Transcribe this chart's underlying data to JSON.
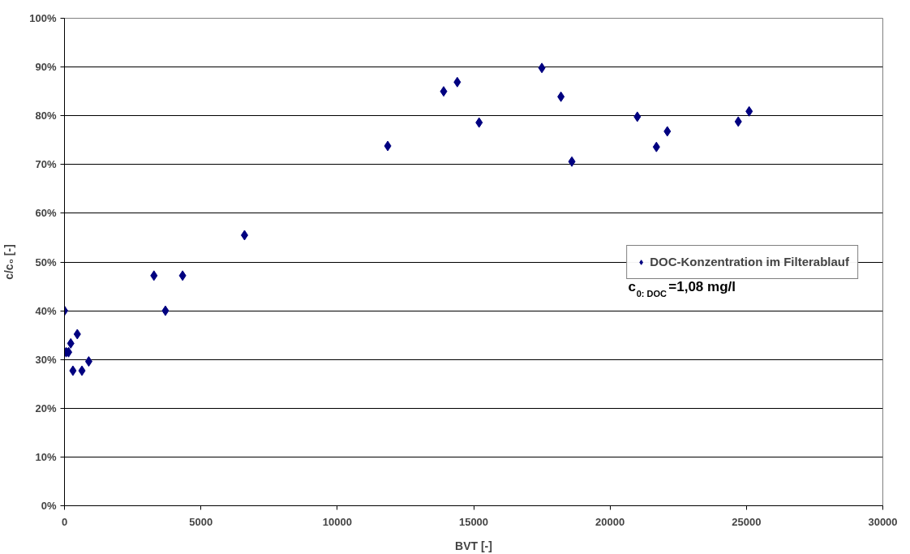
{
  "chart_data": {
    "type": "scatter",
    "xlabel": "BVT [-]",
    "ylabel": "c/c₀ [-]",
    "xlim": [
      0,
      30000
    ],
    "xticks": [
      0,
      5000,
      10000,
      15000,
      20000,
      25000,
      30000
    ],
    "ylim": [
      0,
      100
    ],
    "yticks": [
      {
        "value": 0,
        "label": "0%"
      },
      {
        "value": 10,
        "label": "10%"
      },
      {
        "value": 20,
        "label": "20%"
      },
      {
        "value": 30,
        "label": "30%"
      },
      {
        "value": 40,
        "label": "40%"
      },
      {
        "value": 50,
        "label": "50%"
      },
      {
        "value": 60,
        "label": "60%"
      },
      {
        "value": 70,
        "label": "70%"
      },
      {
        "value": 80,
        "label": "80%"
      },
      {
        "value": 90,
        "label": "90%"
      },
      {
        "value": 100,
        "label": "100%"
      }
    ],
    "grid": "y",
    "legend": "right",
    "marker": "diamond",
    "annotations": [
      "c$_{0: DOC}$=1,08 mg/l"
    ],
    "series": [
      {
        "name": "DOC-Konzentration im Filterablauf",
        "color": "#000080",
        "x": [
          0,
          60,
          150,
          230,
          310,
          470,
          640,
          890,
          3280,
          3700,
          4330,
          6600,
          11850,
          13900,
          14400,
          15200,
          17500,
          18200,
          18600,
          21000,
          21700,
          22100,
          24700,
          25100
        ],
        "values": [
          40,
          31.5,
          31.5,
          33.3,
          27.7,
          35.2,
          27.7,
          29.6,
          47.2,
          40,
          47.2,
          55.5,
          73.8,
          85,
          86.9,
          78.6,
          89.8,
          83.9,
          70.6,
          79.8,
          73.6,
          76.8,
          78.8,
          80.9
        ]
      }
    ]
  }
}
